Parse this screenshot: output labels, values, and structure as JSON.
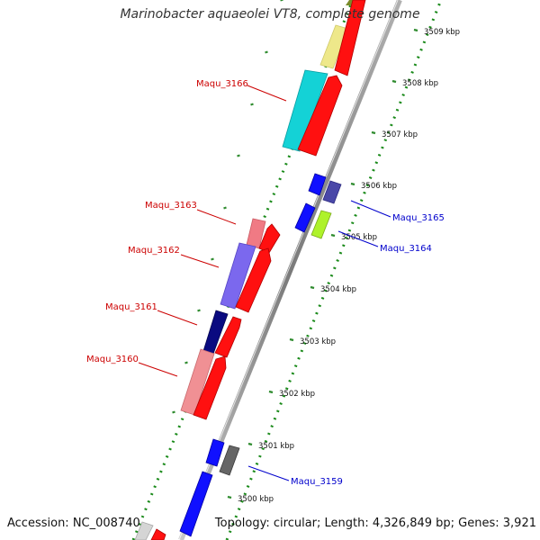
{
  "title": "Marinobacter aquaeolei VT8, complete genome",
  "accession": "Accession: NC_008740",
  "topology": "Topology: circular; Length: 4,326,849 bp; Genes: 3,921",
  "colors": {
    "backbone": "#8a8a8a",
    "forward_label": "#cc0000",
    "reverse_label": "#0000cc",
    "tick": "#2e8b2e",
    "dot": "#1a8a1a"
  },
  "scale_ticks": [
    {
      "label": "3500 kbp"
    },
    {
      "label": "3501 kbp"
    },
    {
      "label": "3502 kbp"
    },
    {
      "label": "3503 kbp"
    },
    {
      "label": "3504 kbp"
    },
    {
      "label": "3505 kbp"
    },
    {
      "label": "3506 kbp"
    },
    {
      "label": "3507 kbp"
    },
    {
      "label": "3508 kbp"
    },
    {
      "label": "3509 kbp"
    }
  ],
  "gene_labels": [
    {
      "name": "Maqu_3166",
      "strand": "forward"
    },
    {
      "name": "Maqu_3163",
      "strand": "forward"
    },
    {
      "name": "Maqu_3162",
      "strand": "forward"
    },
    {
      "name": "Maqu_3161",
      "strand": "forward"
    },
    {
      "name": "Maqu_3160",
      "strand": "forward"
    },
    {
      "name": "Maqu_3165",
      "strand": "reverse"
    },
    {
      "name": "Maqu_3164",
      "strand": "reverse"
    },
    {
      "name": "Maqu_3159",
      "strand": "reverse"
    }
  ]
}
